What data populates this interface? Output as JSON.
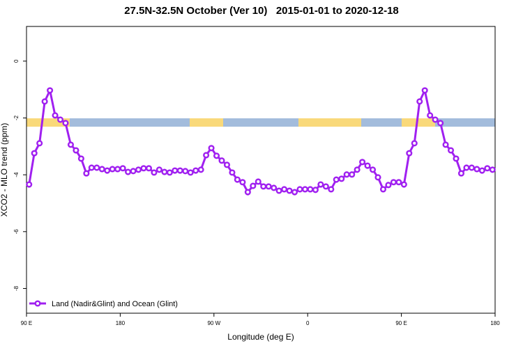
{
  "chart_data": {
    "type": "line",
    "title": "27.5N-32.5N October (Ver 10)   2015-01-01 to 2020-12-18",
    "x_label": "Longitude (deg E)",
    "y_label": "XCO2 - MLO trend (ppm)",
    "x": [
      92.5,
      97.5,
      102.5,
      107.5,
      112.5,
      117.5,
      122.5,
      127.5,
      132.5,
      137.5,
      142.5,
      147.5,
      152.5,
      157.5,
      162.5,
      167.5,
      172.5,
      177.5,
      182.5,
      187.5,
      192.5,
      197.5,
      202.5,
      207.5,
      212.5,
      217.5,
      222.5,
      227.5,
      232.5,
      237.5,
      242.5,
      247.5,
      252.5,
      257.5,
      262.5,
      267.5,
      272.5,
      277.5,
      282.5,
      287.5,
      292.5,
      297.5,
      302.5,
      307.5,
      312.5,
      317.5,
      322.5,
      327.5,
      332.5,
      337.5,
      342.5,
      347.5,
      352.5,
      357.5,
      362.5,
      367.5,
      372.5,
      377.5,
      382.5,
      387.5,
      392.5,
      397.5,
      402.5,
      407.5,
      412.5,
      417.5,
      422.5,
      427.5,
      432.5,
      437.5,
      442.5,
      447.5,
      452.5,
      457.5,
      462.5,
      467.5,
      472.5,
      477.5,
      482.5,
      487.5,
      492.5,
      497.5,
      502.5,
      507.5,
      512.5,
      517.5,
      522.5,
      527.5,
      532.5,
      537.5
    ],
    "series": [
      {
        "name": "Land (Nadir&Glint) and Ocean (Glint)",
        "color": "#a020f0",
        "values": [
          -4.34,
          -3.24,
          -2.89,
          -1.42,
          -1.03,
          -1.91,
          -2.06,
          -2.18,
          -2.94,
          -3.14,
          -3.43,
          -3.95,
          -3.75,
          -3.75,
          -3.8,
          -3.85,
          -3.8,
          -3.8,
          -3.77,
          -3.9,
          -3.87,
          -3.82,
          -3.77,
          -3.77,
          -3.92,
          -3.82,
          -3.9,
          -3.92,
          -3.85,
          -3.85,
          -3.87,
          -3.92,
          -3.85,
          -3.82,
          -3.31,
          -3.06,
          -3.33,
          -3.5,
          -3.65,
          -3.92,
          -4.17,
          -4.26,
          -4.61,
          -4.39,
          -4.24,
          -4.41,
          -4.41,
          -4.46,
          -4.56,
          -4.51,
          -4.56,
          -4.61,
          -4.51,
          -4.51,
          -4.51,
          -4.53,
          -4.34,
          -4.41,
          -4.51,
          -4.17,
          -4.14,
          -3.99,
          -3.99,
          -3.82,
          -3.55,
          -3.68,
          -3.82,
          -4.09,
          -4.51,
          -4.36,
          -4.26,
          -4.26,
          -4.34,
          -3.24,
          -2.89,
          -1.42,
          -1.03,
          -1.91,
          -2.06,
          -2.18,
          -2.94,
          -3.14,
          -3.43,
          -3.95,
          -3.75,
          -3.75,
          -3.8,
          -3.85,
          -3.77,
          -3.82
        ]
      }
    ],
    "xlim": [
      90,
      540
    ],
    "ylim": [
      -8.87,
      1.22
    ],
    "xticks": [
      {
        "value": 90,
        "label": "90 E"
      },
      180,
      {
        "value": 270,
        "label": "90 W"
      },
      {
        "value": 360,
        "label": "0"
      },
      {
        "value": 450,
        "label": "90 E"
      },
      {
        "value": 540,
        "label": "180"
      }
    ],
    "yticks": [
      0,
      -2,
      -4,
      -6,
      -8
    ],
    "legend": "bottom-left"
  }
}
